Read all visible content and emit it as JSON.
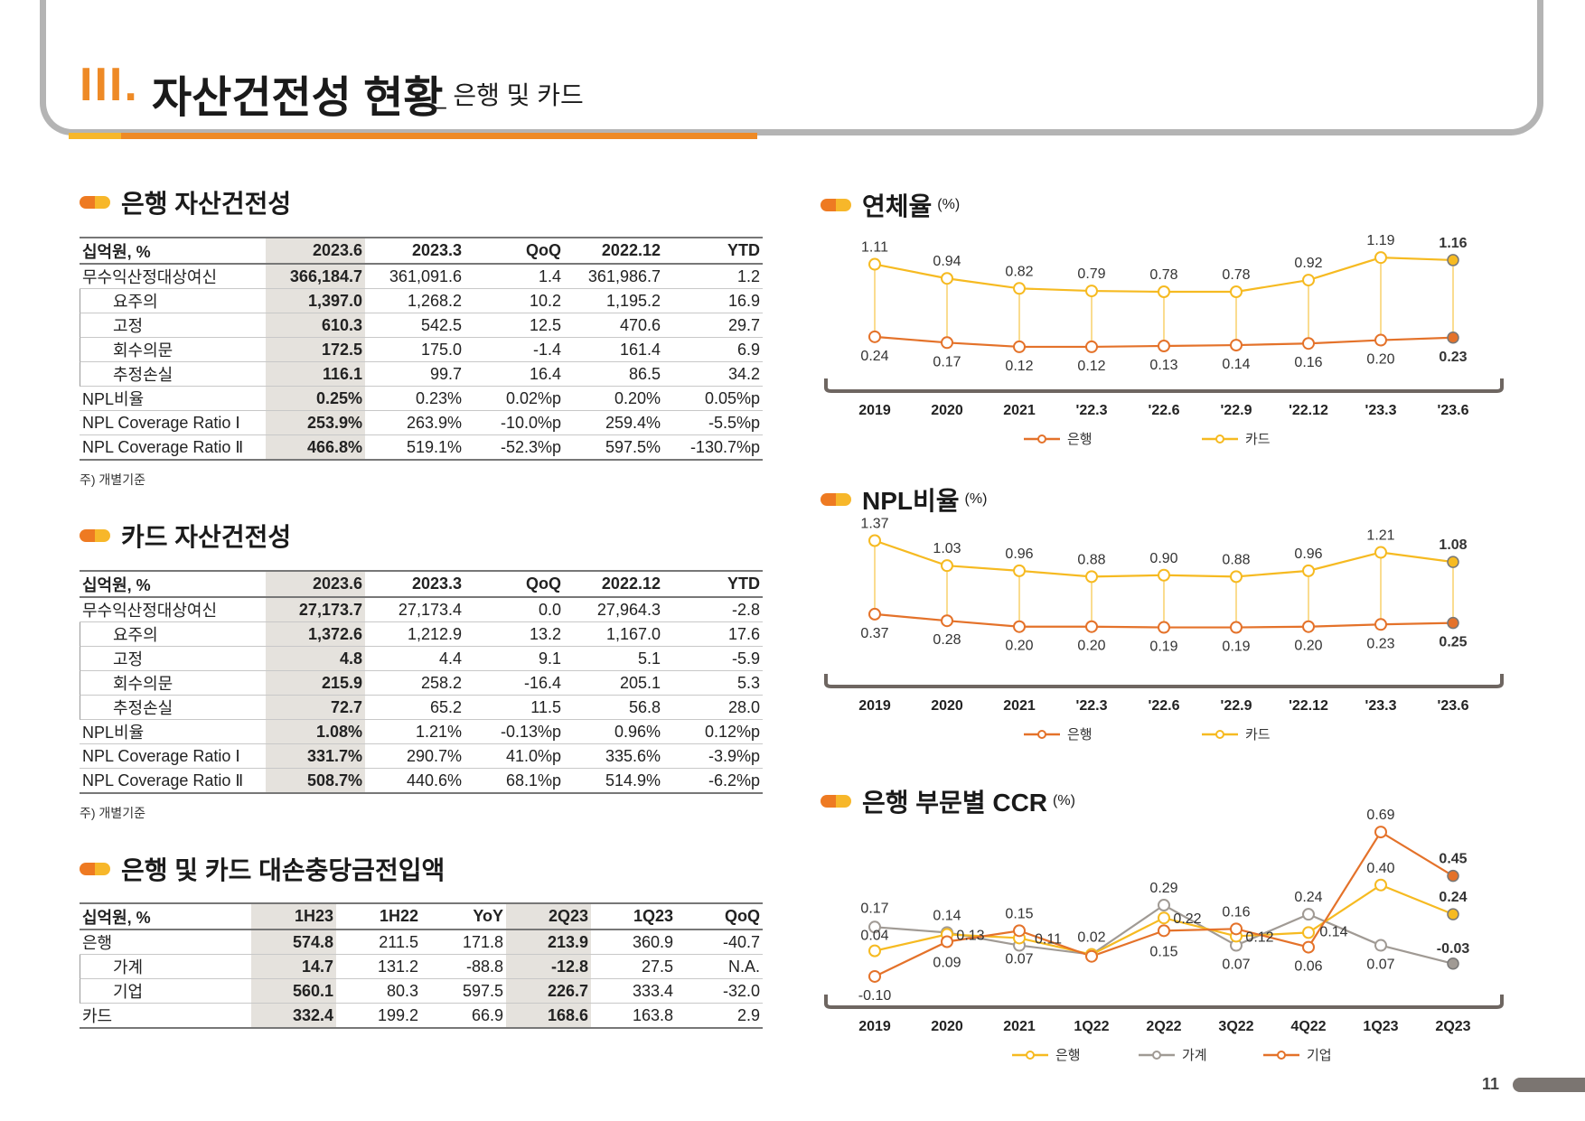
{
  "page": {
    "roman": "III.",
    "title": "자산건전성 현황",
    "subtitle": "_ 은행 및 카드",
    "page_number": "11"
  },
  "bank": {
    "title": "은행 자산건전성",
    "note": "주) 개별기준",
    "headers": [
      "십억원, %",
      "2023.6",
      "2023.3",
      "QoQ",
      "2022.12",
      "YTD"
    ],
    "rows": [
      {
        "label": "무수익산정대상여신",
        "sub": false,
        "cells": [
          "366,184.7",
          "361,091.6",
          "1.4",
          "361,986.7",
          "1.2"
        ]
      },
      {
        "label": "요주의",
        "sub": true,
        "cells": [
          "1,397.0",
          "1,268.2",
          "10.2",
          "1,195.2",
          "16.9"
        ]
      },
      {
        "label": "고정",
        "sub": true,
        "cells": [
          "610.3",
          "542.5",
          "12.5",
          "470.6",
          "29.7"
        ]
      },
      {
        "label": "회수의문",
        "sub": true,
        "cells": [
          "172.5",
          "175.0",
          "-1.4",
          "161.4",
          "6.9"
        ]
      },
      {
        "label": "추정손실",
        "sub": true,
        "cells": [
          "116.1",
          "99.7",
          "16.4",
          "86.5",
          "34.2"
        ]
      },
      {
        "label": "NPL비율",
        "sub": false,
        "cells": [
          "0.25%",
          "0.23%",
          "0.02%p",
          "0.20%",
          "0.05%p"
        ]
      },
      {
        "label": "NPL Coverage Ratio Ⅰ",
        "sub": false,
        "cells": [
          "253.9%",
          "263.9%",
          "-10.0%p",
          "259.4%",
          "-5.5%p"
        ]
      },
      {
        "label": "NPL Coverage Ratio Ⅱ",
        "sub": false,
        "cells": [
          "466.8%",
          "519.1%",
          "-52.3%p",
          "597.5%",
          "-130.7%p"
        ]
      }
    ]
  },
  "card": {
    "title": "카드 자산건전성",
    "note": "주) 개별기준",
    "headers": [
      "십억원, %",
      "2023.6",
      "2023.3",
      "QoQ",
      "2022.12",
      "YTD"
    ],
    "rows": [
      {
        "label": "무수익산정대상여신",
        "sub": false,
        "cells": [
          "27,173.7",
          "27,173.4",
          "0.0",
          "27,964.3",
          "-2.8"
        ]
      },
      {
        "label": "요주의",
        "sub": true,
        "cells": [
          "1,372.6",
          "1,212.9",
          "13.2",
          "1,167.0",
          "17.6"
        ]
      },
      {
        "label": "고정",
        "sub": true,
        "cells": [
          "4.8",
          "4.4",
          "9.1",
          "5.1",
          "-5.9"
        ]
      },
      {
        "label": "회수의문",
        "sub": true,
        "cells": [
          "215.9",
          "258.2",
          "-16.4",
          "205.1",
          "5.3"
        ]
      },
      {
        "label": "추정손실",
        "sub": true,
        "cells": [
          "72.7",
          "65.2",
          "11.5",
          "56.8",
          "28.0"
        ]
      },
      {
        "label": "NPL비율",
        "sub": false,
        "cells": [
          "1.08%",
          "1.21%",
          "-0.13%p",
          "0.96%",
          "0.12%p"
        ]
      },
      {
        "label": "NPL Coverage Ratio Ⅰ",
        "sub": false,
        "cells": [
          "331.7%",
          "290.7%",
          "41.0%p",
          "335.6%",
          "-3.9%p"
        ]
      },
      {
        "label": "NPL Coverage Ratio Ⅱ",
        "sub": false,
        "cells": [
          "508.7%",
          "440.6%",
          "68.1%p",
          "514.9%",
          "-6.2%p"
        ]
      }
    ]
  },
  "provision": {
    "title": "은행 및 카드 대손충당금전입액",
    "headers": [
      "십억원, %",
      "1H23",
      "1H22",
      "YoY",
      "2Q23",
      "1Q23",
      "QoQ"
    ],
    "rows": [
      {
        "label": "은행",
        "sub": false,
        "cells": [
          "574.8",
          "211.5",
          "171.8",
          "213.9",
          "360.9",
          "-40.7"
        ]
      },
      {
        "label": "가계",
        "sub": true,
        "cells": [
          "14.7",
          "131.2",
          "-88.8",
          "-12.8",
          "27.5",
          "N.A."
        ]
      },
      {
        "label": "기업",
        "sub": true,
        "cells": [
          "560.1",
          "80.3",
          "597.5",
          "226.7",
          "333.4",
          "-32.0"
        ]
      },
      {
        "label": "카드",
        "sub": false,
        "cells": [
          "332.4",
          "199.2",
          "66.9",
          "168.6",
          "163.8",
          "2.9"
        ]
      }
    ]
  },
  "colors": {
    "bank": "#e4722a",
    "card": "#f6ba21",
    "household": "#a09a94",
    "corporate": "#e4722a",
    "ccr_bank": "#f6ba21",
    "axis": "#6e6661"
  },
  "chart_data": [
    {
      "type": "line",
      "title": "연체율",
      "unit": "(%)",
      "categories": [
        "2019",
        "2020",
        "2021",
        "'22.3",
        "'22.6",
        "'22.9",
        "'22.12",
        "'23.3",
        "'23.6"
      ],
      "series": [
        {
          "name": "은행",
          "color": "#e4722a",
          "values": [
            0.24,
            0.17,
            0.12,
            0.12,
            0.13,
            0.14,
            0.16,
            0.2,
            0.23
          ],
          "labels": [
            "0.24",
            "0.17",
            "0.12",
            "0.12",
            "0.13",
            "0.14",
            "0.16",
            "0.20",
            "0.23"
          ]
        },
        {
          "name": "카드",
          "color": "#f6ba21",
          "values": [
            1.11,
            0.94,
            0.82,
            0.79,
            0.78,
            0.78,
            0.92,
            1.19,
            1.16
          ],
          "labels": [
            "1.11",
            "0.94",
            "0.82",
            "0.79",
            "0.78",
            "0.78",
            "0.92",
            "1.19",
            "1.16"
          ]
        }
      ],
      "legend": [
        "은행",
        "카드"
      ]
    },
    {
      "type": "line",
      "title": "NPL비율",
      "unit": "(%)",
      "categories": [
        "2019",
        "2020",
        "2021",
        "'22.3",
        "'22.6",
        "'22.9",
        "'22.12",
        "'23.3",
        "'23.6"
      ],
      "series": [
        {
          "name": "은행",
          "color": "#e4722a",
          "values": [
            0.37,
            0.28,
            0.2,
            0.2,
            0.19,
            0.19,
            0.2,
            0.23,
            0.25
          ],
          "labels": [
            "0.37",
            "0.28",
            "0.20",
            "0.20",
            "0.19",
            "0.19",
            "0.20",
            "0.23",
            "0.25"
          ]
        },
        {
          "name": "카드",
          "color": "#f6ba21",
          "values": [
            1.37,
            1.03,
            0.96,
            0.88,
            0.9,
            0.88,
            0.96,
            1.21,
            1.08
          ],
          "labels": [
            "1.37",
            "1.03",
            "0.96",
            "0.88",
            "0.90",
            "0.88",
            "0.96",
            "1.21",
            "1.08"
          ]
        }
      ],
      "legend": [
        "은행",
        "카드"
      ]
    },
    {
      "type": "line",
      "title": "은행 부문별 CCR",
      "unit": "(%)",
      "categories": [
        "2019",
        "2020",
        "2021",
        "1Q22",
        "2Q22",
        "3Q22",
        "4Q22",
        "1Q23",
        "2Q23"
      ],
      "series": [
        {
          "name": "은행",
          "color": "#f6ba21",
          "values": [
            0.04,
            0.13,
            0.11,
            0.02,
            0.22,
            0.12,
            0.14,
            0.4,
            0.24
          ],
          "labels": [
            "0.04",
            "0.13",
            "0.11",
            "0.02",
            "0.22",
            "0.12",
            "0.14",
            "0.40",
            "0.24"
          ]
        },
        {
          "name": "가계",
          "color": "#a09a94",
          "values": [
            0.17,
            0.14,
            0.07,
            0.02,
            0.29,
            0.07,
            0.24,
            0.07,
            -0.03
          ],
          "labels": [
            "0.17",
            "0.14",
            "0.07",
            "",
            "0.29",
            "0.07",
            "0.24",
            "0.07",
            "-0.03"
          ]
        },
        {
          "name": "기업",
          "color": "#e4722a",
          "values": [
            -0.1,
            0.09,
            0.15,
            0.01,
            0.15,
            0.16,
            0.06,
            0.69,
            0.45
          ],
          "labels": [
            "-0.10",
            "0.09",
            "0.15",
            "",
            "0.15",
            "0.16",
            "0.06",
            "0.69",
            "0.45"
          ]
        }
      ],
      "legend": [
        "은행",
        "가계",
        "기업"
      ]
    }
  ]
}
